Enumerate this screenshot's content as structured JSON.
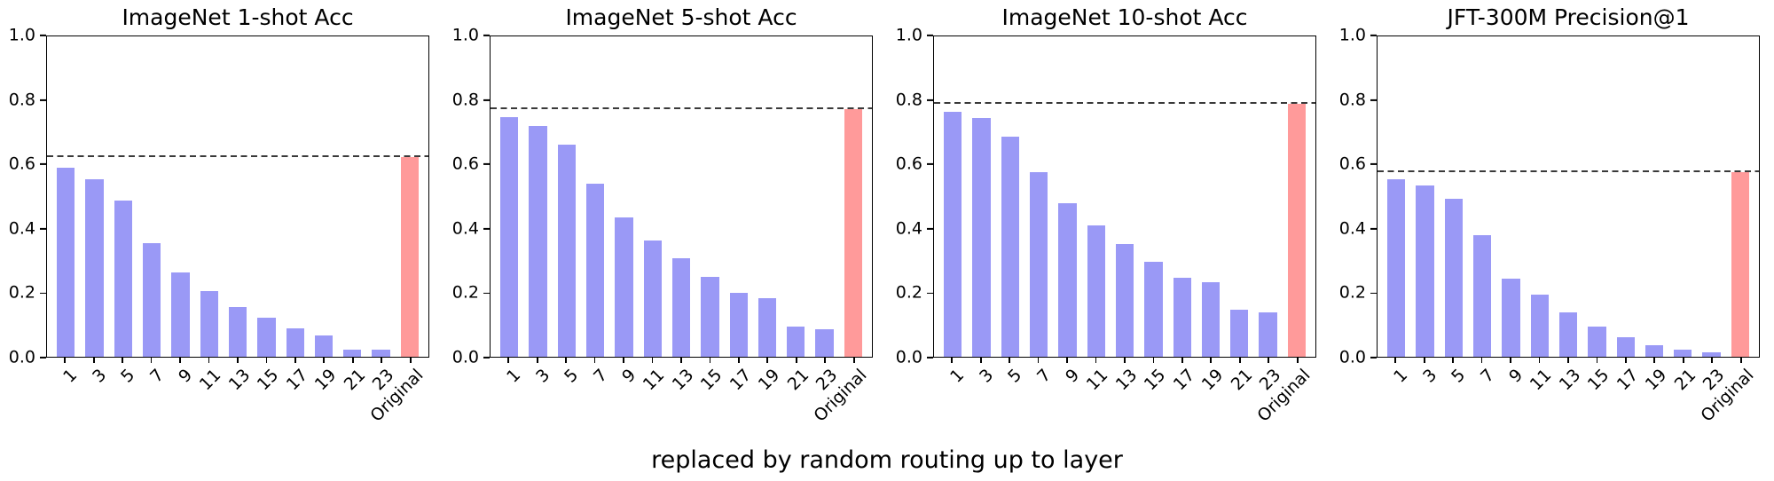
{
  "figure": {
    "xlabel": "replaced by random routing up to layer",
    "background": "#ffffff"
  },
  "colors": {
    "layer_bar": "#9a99f6",
    "original_bar": "#ff9a9a",
    "dashed_line": "#3a3a3a",
    "axis": "#000000"
  },
  "chart_data": [
    {
      "type": "bar",
      "title": "ImageNet 1-shot Acc",
      "categories": [
        "1",
        "3",
        "5",
        "7",
        "9",
        "11",
        "13",
        "15",
        "17",
        "19",
        "21",
        "23",
        "Original"
      ],
      "values": [
        0.59,
        0.555,
        0.487,
        0.355,
        0.262,
        0.204,
        0.156,
        0.121,
        0.088,
        0.066,
        0.022,
        0.021,
        0.623
      ],
      "dashed_line_y": 0.623,
      "highlight_category": "Original",
      "xlabel": "",
      "ylabel": "",
      "ylim": [
        0.0,
        1.0
      ],
      "yticks": [
        0.0,
        0.2,
        0.4,
        0.6,
        0.8,
        1.0
      ],
      "ytick_labels": [
        "0.0",
        "0.2",
        "0.4",
        "0.6",
        "0.8",
        "1.0"
      ],
      "grid": false,
      "legend": "none"
    },
    {
      "type": "bar",
      "title": "ImageNet 5-shot Acc",
      "categories": [
        "1",
        "3",
        "5",
        "7",
        "9",
        "11",
        "13",
        "15",
        "17",
        "19",
        "21",
        "23",
        "Original"
      ],
      "values": [
        0.748,
        0.72,
        0.662,
        0.54,
        0.435,
        0.363,
        0.308,
        0.248,
        0.199,
        0.182,
        0.094,
        0.086,
        0.773
      ],
      "dashed_line_y": 0.773,
      "highlight_category": "Original",
      "xlabel": "",
      "ylabel": "",
      "ylim": [
        0.0,
        1.0
      ],
      "yticks": [
        0.0,
        0.2,
        0.4,
        0.6,
        0.8,
        1.0
      ],
      "ytick_labels": [
        "0.0",
        "0.2",
        "0.4",
        "0.6",
        "0.8",
        "1.0"
      ],
      "grid": false,
      "legend": "none"
    },
    {
      "type": "bar",
      "title": "ImageNet 10-shot Acc",
      "categories": [
        "1",
        "3",
        "5",
        "7",
        "9",
        "11",
        "13",
        "15",
        "17",
        "19",
        "21",
        "23",
        "Original"
      ],
      "values": [
        0.765,
        0.744,
        0.687,
        0.577,
        0.478,
        0.411,
        0.351,
        0.296,
        0.247,
        0.233,
        0.146,
        0.138,
        0.79
      ],
      "dashed_line_y": 0.79,
      "highlight_category": "Original",
      "xlabel": "",
      "ylabel": "",
      "ylim": [
        0.0,
        1.0
      ],
      "yticks": [
        0.0,
        0.2,
        0.4,
        0.6,
        0.8,
        1.0
      ],
      "ytick_labels": [
        "0.0",
        "0.2",
        "0.4",
        "0.6",
        "0.8",
        "1.0"
      ],
      "grid": false,
      "legend": "none"
    },
    {
      "type": "bar",
      "title": "JFT-300M Precision@1",
      "categories": [
        "1",
        "3",
        "5",
        "7",
        "9",
        "11",
        "13",
        "15",
        "17",
        "19",
        "21",
        "23",
        "Original"
      ],
      "values": [
        0.554,
        0.535,
        0.492,
        0.379,
        0.244,
        0.193,
        0.138,
        0.095,
        0.062,
        0.037,
        0.023,
        0.013,
        0.577
      ],
      "dashed_line_y": 0.577,
      "highlight_category": "Original",
      "xlabel": "",
      "ylabel": "",
      "ylim": [
        0.0,
        1.0
      ],
      "yticks": [
        0.0,
        0.2,
        0.4,
        0.6,
        0.8,
        1.0
      ],
      "ytick_labels": [
        "0.0",
        "0.2",
        "0.4",
        "0.6",
        "0.8",
        "1.0"
      ],
      "grid": false,
      "legend": "none"
    }
  ]
}
